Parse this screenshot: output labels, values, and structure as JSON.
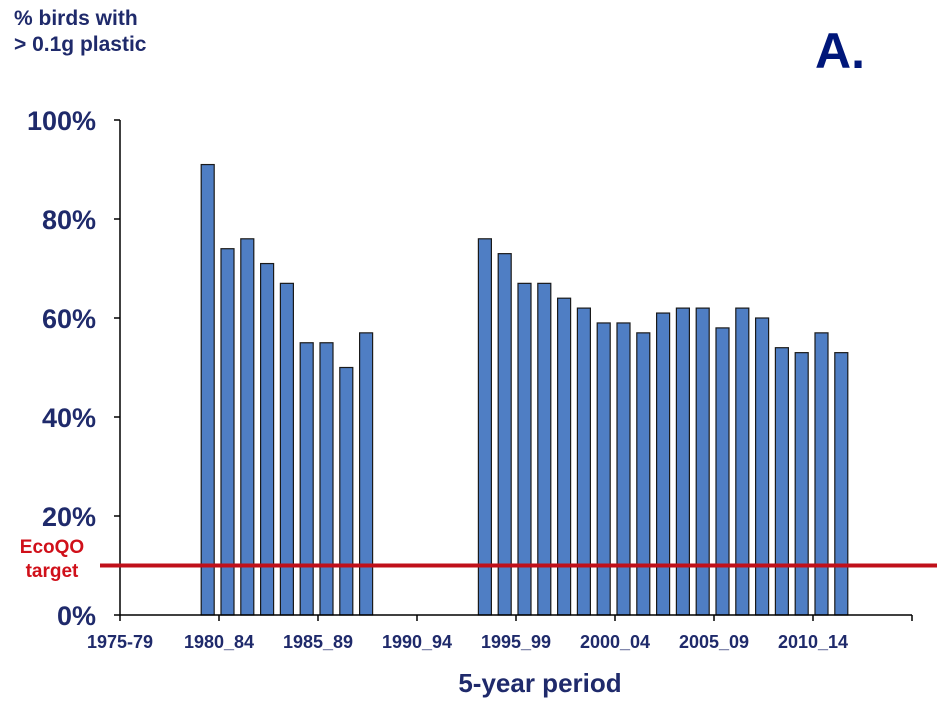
{
  "chart_data": {
    "type": "bar",
    "ylabel": [
      "% birds with",
      "> 0.1g plastic"
    ],
    "xlabel": "5-year period",
    "panel_label": "A.",
    "ylim": [
      0,
      100
    ],
    "yticks": [
      "0%",
      "20%",
      "40%",
      "60%",
      "80%",
      "100%"
    ],
    "xlim": [
      1975,
      2015
    ],
    "xtick_labels": [
      {
        "label": "1975-79",
        "year": 1975
      },
      {
        "label": "1980_84",
        "year": 1980
      },
      {
        "label": "1985_89",
        "year": 1985
      },
      {
        "label": "1990_94",
        "year": 1990
      },
      {
        "label": "1995_99",
        "year": 1995
      },
      {
        "label": "2000_04",
        "year": 2000
      },
      {
        "label": "2005_09",
        "year": 2005
      },
      {
        "label": "2010_14",
        "year": 2010
      }
    ],
    "bars": [
      {
        "year": 1979,
        "value": 91
      },
      {
        "year": 1980,
        "value": 74
      },
      {
        "year": 1981,
        "value": 76
      },
      {
        "year": 1982,
        "value": 71
      },
      {
        "year": 1983,
        "value": 67
      },
      {
        "year": 1984,
        "value": 55
      },
      {
        "year": 1985,
        "value": 55
      },
      {
        "year": 1986,
        "value": 50
      },
      {
        "year": 1987,
        "value": 57
      },
      {
        "year": 1993,
        "value": 76
      },
      {
        "year": 1994,
        "value": 73
      },
      {
        "year": 1995,
        "value": 67
      },
      {
        "year": 1996,
        "value": 67
      },
      {
        "year": 1997,
        "value": 64
      },
      {
        "year": 1998,
        "value": 62
      },
      {
        "year": 1999,
        "value": 59
      },
      {
        "year": 2000,
        "value": 59
      },
      {
        "year": 2001,
        "value": 57
      },
      {
        "year": 2002,
        "value": 61
      },
      {
        "year": 2003,
        "value": 62
      },
      {
        "year": 2004,
        "value": 62
      },
      {
        "year": 2005,
        "value": 58
      },
      {
        "year": 2006,
        "value": 62
      },
      {
        "year": 2007,
        "value": 60
      },
      {
        "year": 2008,
        "value": 54
      },
      {
        "year": 2009,
        "value": 53
      },
      {
        "year": 2010,
        "value": 57
      },
      {
        "year": 2011,
        "value": 53
      }
    ],
    "target": {
      "label": [
        "EcoQO",
        "target"
      ],
      "value": 10
    },
    "colors": {
      "bar_fill": "#4f7ec4",
      "bar_stroke": "#1a1a1a",
      "target_line": "#c0101a",
      "axis_text": "#1f2a6b",
      "panel_label": "#00177a"
    },
    "grid": false
  }
}
